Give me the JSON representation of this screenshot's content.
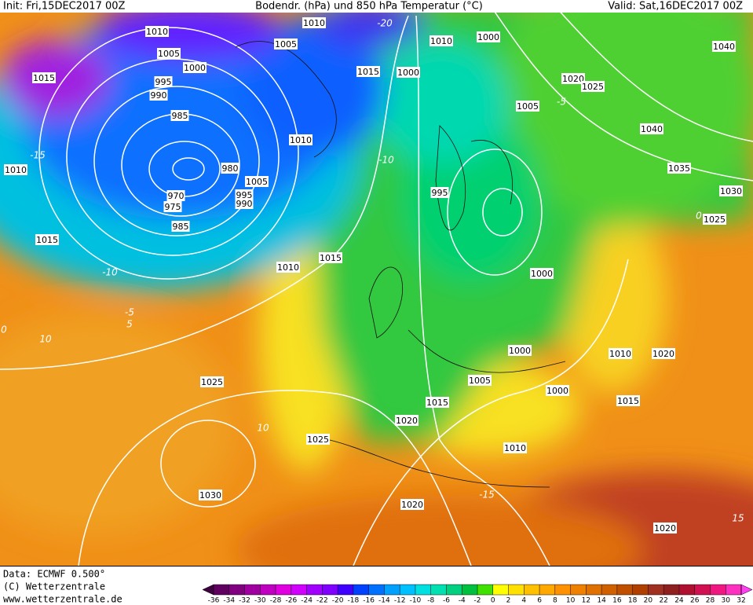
{
  "header": {
    "init": "Init: Fri,15DEC2017 00Z",
    "title": "Bodendr. (hPa) und 850 hPa Temperatur (°C)",
    "valid": "Valid: Sat,16DEC2017 00Z"
  },
  "footer": {
    "data": "Data: ECMWF  0.500°",
    "copyright": "(C) Wetterzentrale",
    "url": "www.wetterzentrale.de"
  },
  "colorbar": {
    "ticks": [
      -36,
      -34,
      -32,
      -30,
      -28,
      -26,
      -24,
      -22,
      -20,
      -18,
      -16,
      -14,
      -12,
      -10,
      -8,
      -6,
      -4,
      -2,
      0,
      2,
      4,
      6,
      8,
      10,
      12,
      14,
      16,
      18,
      20,
      22,
      24,
      26,
      28,
      30,
      32
    ],
    "colors": [
      "#400040",
      "#600060",
      "#800080",
      "#a000a0",
      "#c000c0",
      "#e000e0",
      "#d000ff",
      "#a000ff",
      "#8000ff",
      "#4000ff",
      "#0040ff",
      "#0070ff",
      "#00a0ff",
      "#00c0ff",
      "#00e0e0",
      "#00e0b0",
      "#00d080",
      "#00c040",
      "#40e000",
      "#ffff00",
      "#ffe000",
      "#ffc000",
      "#ffa800",
      "#ff9000",
      "#f08000",
      "#e07000",
      "#d06000",
      "#c05000",
      "#b04000",
      "#a03020",
      "#902020",
      "#b01030",
      "#d01050",
      "#f01880",
      "#ff30c0",
      "#ff40f0"
    ]
  },
  "isobar_labels": [
    "1010",
    "1005",
    "1000",
    "995",
    "990",
    "985",
    "1015",
    "1010",
    "1015",
    "980",
    "970",
    "975",
    "985",
    "1005",
    "995",
    "990",
    "1010",
    "1010",
    "1005",
    "1010",
    "1015",
    "1000",
    "1000",
    "1005",
    "1020",
    "1025",
    "1040",
    "1040",
    "1035",
    "1030",
    "1025",
    "995",
    "1015",
    "1010",
    "1000",
    "1000",
    "1005",
    "1000",
    "1015",
    "1020",
    "1010",
    "1025",
    "1025",
    "1030",
    "1020",
    "1020",
    "1010",
    "1020",
    "1015"
  ],
  "temperature_labels": [
    "-15",
    "-10",
    "-5",
    "0",
    "5",
    "10",
    "-10",
    "-20",
    "-5",
    "0",
    "10",
    "-15",
    "15"
  ]
}
